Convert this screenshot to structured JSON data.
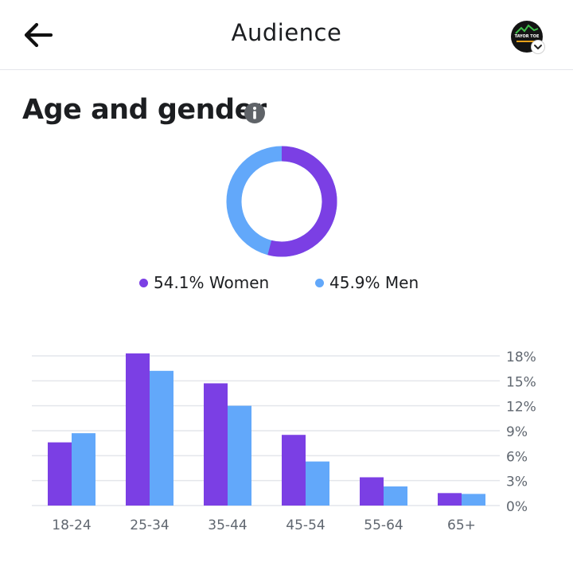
{
  "header": {
    "title": "Audience",
    "avatar_text": "TAYOR TOE"
  },
  "section": {
    "title": "Age and gender"
  },
  "gender": {
    "women_label": "54.1% Women",
    "men_label": "45.9% Men",
    "women_pct": 54.1,
    "men_pct": 45.9
  },
  "colors": {
    "women": "#7b3fe4",
    "men": "#62a8fa",
    "grid": "#e4e6eb",
    "axis_text": "#606770"
  },
  "chart_data": {
    "type": "bar",
    "title": "Age and gender",
    "categories": [
      "18-24",
      "25-34",
      "35-44",
      "45-54",
      "55-64",
      "65+"
    ],
    "series": [
      {
        "name": "Women",
        "values": [
          7.6,
          18.3,
          14.7,
          8.5,
          3.4,
          1.5
        ]
      },
      {
        "name": "Men",
        "values": [
          8.7,
          16.2,
          12.0,
          5.3,
          2.3,
          1.4
        ]
      }
    ],
    "yticks": [
      "0%",
      "3%",
      "6%",
      "9%",
      "12%",
      "15%",
      "18%"
    ],
    "ylim": [
      0,
      18
    ],
    "y_axis_side": "right",
    "grid": true
  }
}
